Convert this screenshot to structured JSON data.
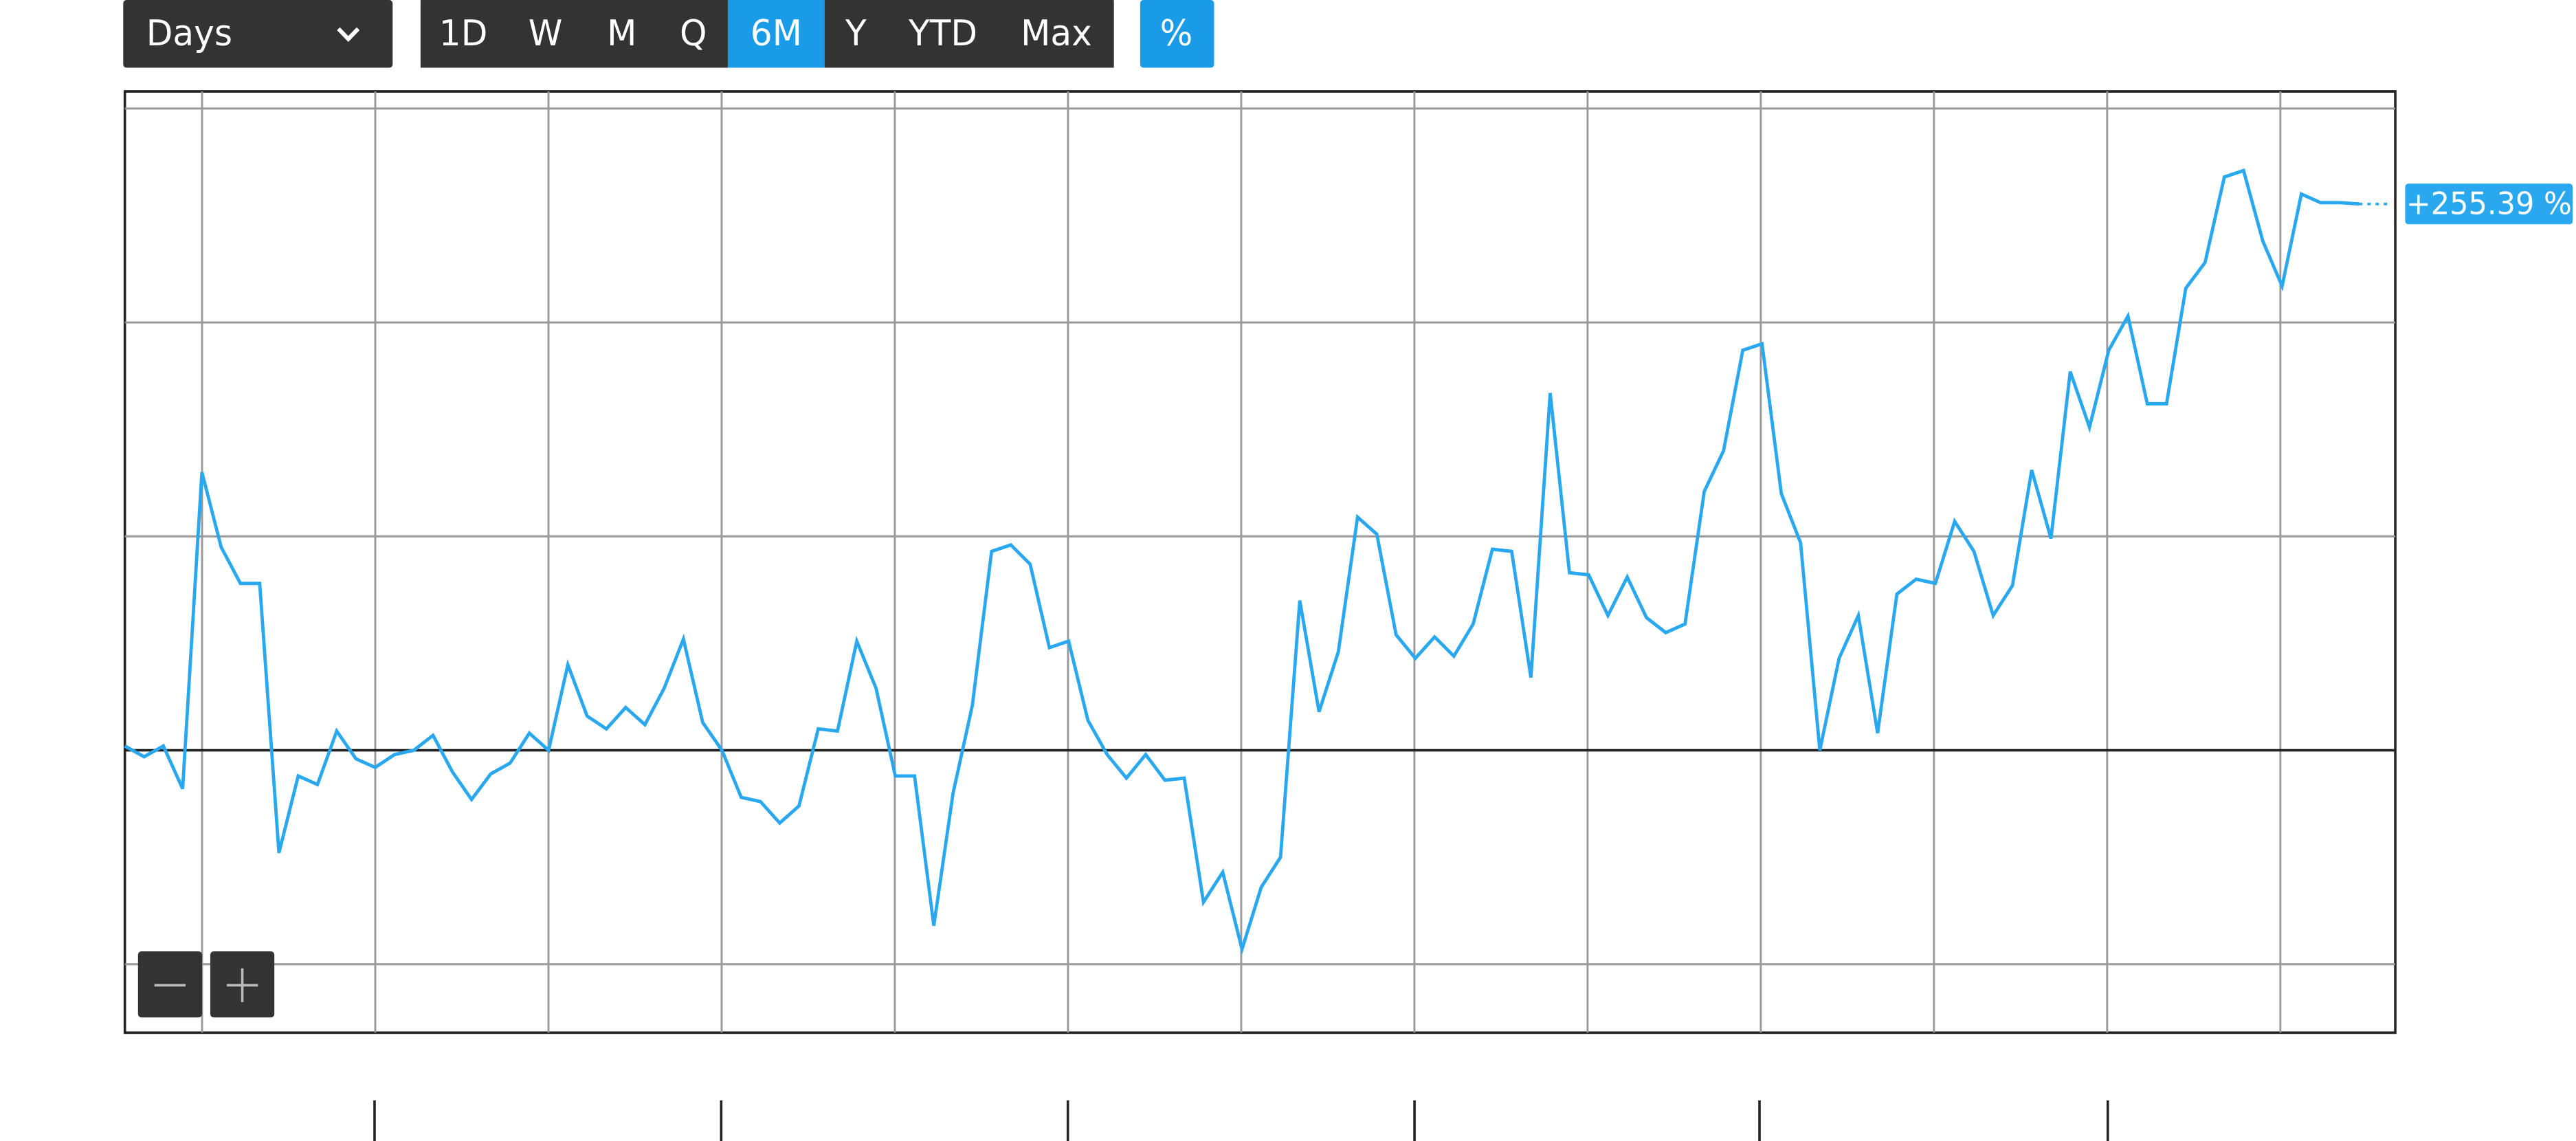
{
  "toolbar": {
    "interval": "Days",
    "ranges": [
      "1D",
      "W",
      "M",
      "Q",
      "6M",
      "Y",
      "YTD",
      "Max"
    ],
    "percent": "%"
  },
  "chart_data": {
    "type": "line",
    "series": [
      {
        "color": "#29a8f0",
        "values": [
          2,
          -3,
          2,
          -18,
          130,
          95,
          78,
          78,
          -48,
          -12,
          -16,
          9,
          -4,
          -8,
          -2,
          0,
          7,
          -10,
          -23,
          -11,
          -6,
          8,
          0,
          40,
          16,
          10,
          20,
          12,
          29,
          52,
          13,
          0,
          -22,
          -24,
          -34,
          -26,
          10,
          9,
          51,
          29,
          -12,
          -12,
          -82,
          -20,
          21,
          93,
          96,
          87,
          48,
          51,
          14,
          -2,
          -13,
          -2,
          -14,
          -13,
          -71,
          -57,
          -93,
          -64,
          -50,
          70,
          18,
          46,
          109,
          101,
          54,
          43,
          53,
          44,
          59,
          94,
          93,
          34,
          167,
          83,
          82,
          63,
          81,
          62,
          55,
          59,
          121,
          140,
          187,
          190,
          120,
          97,
          0,
          43,
          63,
          8,
          73,
          80,
          78,
          107,
          93,
          63,
          77,
          131,
          99,
          177,
          151,
          187,
          203,
          162,
          162,
          216,
          228,
          268,
          271,
          238,
          217,
          260,
          256,
          256,
          255.39
        ]
      }
    ],
    "last_label": "+255.39 %",
    "ylim": [
      -132,
      308
    ],
    "yticks": [
      -100,
      0,
      100,
      200,
      300
    ],
    "grid": true
  }
}
